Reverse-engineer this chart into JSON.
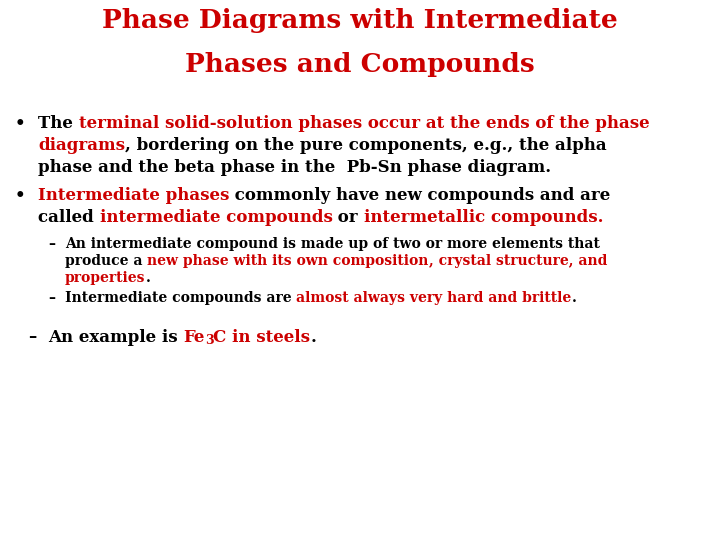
{
  "title1": "Phase Diagrams with Intermediate",
  "title2": "Phases and Compounds",
  "title_color": "#cc0000",
  "black": "#000000",
  "red": "#cc0000",
  "bg": "#ffffff",
  "fig_w": 7.2,
  "fig_h": 5.4,
  "dpi": 100,
  "title_fs": 19,
  "body_fs": 12,
  "sub_fs": 10,
  "last_fs": 12
}
